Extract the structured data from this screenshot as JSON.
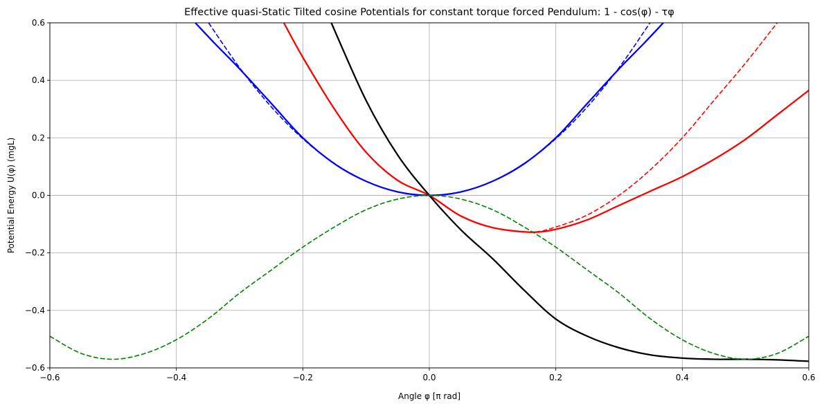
{
  "chart_data": {
    "type": "line",
    "title": "Effective quasi-Static Tilted cosine Potentials for constant torque forced Pendulum: 1 - cos(φ) - τφ",
    "xlabel": "Angle φ [π rad]",
    "ylabel": "Potential Energy U(φ) (mgL)",
    "xlim": [
      -0.6,
      0.6
    ],
    "ylim": [
      -0.6,
      0.6
    ],
    "x_ticks": [
      "−0.6",
      "−0.4",
      "−0.2",
      "0.0",
      "0.2",
      "0.4",
      "0.6"
    ],
    "y_ticks": [
      "−0.6",
      "−0.4",
      "−0.2",
      "0.0",
      "0.2",
      "0.4",
      "0.6"
    ],
    "grid": true,
    "legend": "none",
    "series": [
      {
        "color": "#0000ff",
        "style": "solid",
        "points": [
          [
            -0.37,
            0.6
          ],
          [
            -0.34,
            0.53
          ],
          [
            -0.3,
            0.44
          ],
          [
            -0.25,
            0.32
          ],
          [
            -0.2,
            0.2
          ],
          [
            -0.15,
            0.11
          ],
          [
            -0.1,
            0.049
          ],
          [
            -0.05,
            0.012
          ],
          [
            0.0,
            0.0
          ],
          [
            0.05,
            0.012
          ],
          [
            0.1,
            0.049
          ],
          [
            0.15,
            0.11
          ],
          [
            0.2,
            0.2
          ],
          [
            0.25,
            0.32
          ],
          [
            0.3,
            0.44
          ],
          [
            0.34,
            0.53
          ],
          [
            0.37,
            0.6
          ]
        ]
      },
      {
        "color": "#0000ff",
        "style": "dashed",
        "points": [
          [
            -0.349,
            0.6
          ],
          [
            -0.3,
            0.444
          ],
          [
            -0.25,
            0.308
          ],
          [
            -0.2,
            0.197
          ],
          [
            -0.15,
            0.111
          ],
          [
            -0.1,
            0.049
          ],
          [
            -0.05,
            0.012
          ],
          [
            0.0,
            0.0
          ],
          [
            0.05,
            0.012
          ],
          [
            0.1,
            0.049
          ],
          [
            0.15,
            0.111
          ],
          [
            0.2,
            0.197
          ],
          [
            0.25,
            0.308
          ],
          [
            0.3,
            0.444
          ],
          [
            0.349,
            0.6
          ]
        ]
      },
      {
        "color": "#ff0000",
        "style": "solid",
        "points": [
          [
            -0.23,
            0.6
          ],
          [
            -0.2,
            0.48
          ],
          [
            -0.15,
            0.3
          ],
          [
            -0.1,
            0.15
          ],
          [
            -0.05,
            0.052
          ],
          [
            0.0,
            0.0
          ],
          [
            0.05,
            -0.072
          ],
          [
            0.1,
            -0.112
          ],
          [
            0.16,
            -0.128
          ],
          [
            0.2,
            -0.118
          ],
          [
            0.25,
            -0.085
          ],
          [
            0.3,
            -0.035
          ],
          [
            0.35,
            0.015
          ],
          [
            0.4,
            0.065
          ],
          [
            0.45,
            0.125
          ],
          [
            0.5,
            0.195
          ],
          [
            0.55,
            0.28
          ],
          [
            0.6,
            0.365
          ]
        ]
      },
      {
        "color": "#ff0000",
        "style": "dashed",
        "points": [
          [
            -0.23,
            0.6
          ],
          [
            -0.2,
            0.48
          ],
          [
            -0.15,
            0.3
          ],
          [
            -0.1,
            0.15
          ],
          [
            -0.05,
            0.052
          ],
          [
            0.0,
            0.0
          ],
          [
            0.05,
            -0.072
          ],
          [
            0.1,
            -0.112
          ],
          [
            0.16,
            -0.128
          ],
          [
            0.2,
            -0.11
          ],
          [
            0.25,
            -0.068
          ],
          [
            0.3,
            0.0
          ],
          [
            0.35,
            0.09
          ],
          [
            0.4,
            0.2
          ],
          [
            0.45,
            0.33
          ],
          [
            0.5,
            0.46
          ],
          [
            0.55,
            0.6
          ]
        ]
      },
      {
        "color": "#000000",
        "style": "solid",
        "points": [
          [
            -0.155,
            0.6
          ],
          [
            -0.1,
            0.33
          ],
          [
            -0.05,
            0.14
          ],
          [
            0.0,
            0.0
          ],
          [
            0.05,
            -0.12
          ],
          [
            0.1,
            -0.22
          ],
          [
            0.15,
            -0.33
          ],
          [
            0.2,
            -0.43
          ],
          [
            0.25,
            -0.49
          ],
          [
            0.3,
            -0.53
          ],
          [
            0.35,
            -0.555
          ],
          [
            0.4,
            -0.566
          ],
          [
            0.45,
            -0.57
          ],
          [
            0.5,
            -0.57
          ],
          [
            0.55,
            -0.572
          ],
          [
            0.6,
            -0.577
          ]
        ]
      },
      {
        "color": "#008000",
        "style": "dashed",
        "points": [
          [
            -0.6,
            -0.49
          ],
          [
            -0.55,
            -0.55
          ],
          [
            -0.5,
            -0.57
          ],
          [
            -0.45,
            -0.55
          ],
          [
            -0.4,
            -0.502
          ],
          [
            -0.35,
            -0.43
          ],
          [
            -0.3,
            -0.34
          ],
          [
            -0.25,
            -0.26
          ],
          [
            -0.2,
            -0.18
          ],
          [
            -0.15,
            -0.11
          ],
          [
            -0.1,
            -0.05
          ],
          [
            -0.05,
            -0.013
          ],
          [
            0.0,
            0.0
          ],
          [
            0.05,
            -0.013
          ],
          [
            0.1,
            -0.05
          ],
          [
            0.15,
            -0.11
          ],
          [
            0.2,
            -0.18
          ],
          [
            0.25,
            -0.26
          ],
          [
            0.3,
            -0.34
          ],
          [
            0.35,
            -0.43
          ],
          [
            0.4,
            -0.502
          ],
          [
            0.45,
            -0.55
          ],
          [
            0.5,
            -0.57
          ],
          [
            0.55,
            -0.55
          ],
          [
            0.6,
            -0.49
          ]
        ]
      }
    ]
  }
}
